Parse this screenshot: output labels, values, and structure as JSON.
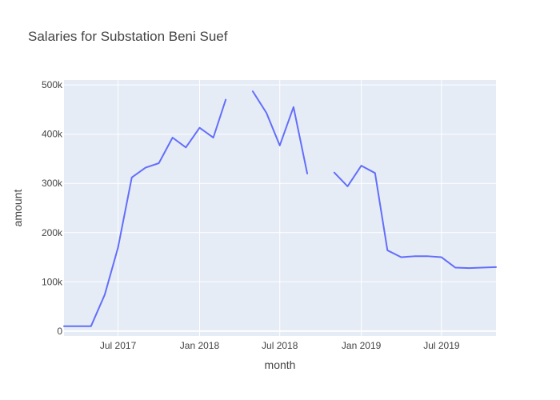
{
  "chart_data": {
    "type": "line",
    "title": "Salaries for Substation Beni Suef",
    "xlabel": "month",
    "ylabel": "amount",
    "x_range": [
      "2017-03-01",
      "2019-11-01"
    ],
    "ylim": [
      -10000,
      510000
    ],
    "grid": true,
    "legend": "none",
    "colors": {
      "line": "#636efa",
      "plot_bg": "#e5ecf6",
      "grid": "#ffffff",
      "paper_bg": "#ffffff",
      "text": "#444444"
    },
    "x_ticks": [
      {
        "date": "2017-07-01",
        "label": "Jul 2017"
      },
      {
        "date": "2018-01-01",
        "label": "Jan 2018"
      },
      {
        "date": "2018-07-01",
        "label": "Jul 2018"
      },
      {
        "date": "2019-01-01",
        "label": "Jan 2019"
      },
      {
        "date": "2019-07-01",
        "label": "Jul 2019"
      }
    ],
    "y_ticks": [
      {
        "value": 0,
        "label": "0"
      },
      {
        "value": 100000,
        "label": "100k"
      },
      {
        "value": 200000,
        "label": "200k"
      },
      {
        "value": 300000,
        "label": "300k"
      },
      {
        "value": 400000,
        "label": "400k"
      },
      {
        "value": 500000,
        "label": "500k"
      }
    ],
    "series": [
      {
        "x": [
          "2017-03-01",
          "2017-04-01",
          "2017-05-01",
          "2017-06-01",
          "2017-07-01",
          "2017-08-01",
          "2017-09-01",
          "2017-10-01",
          "2017-11-01",
          "2017-12-01",
          "2018-01-01",
          "2018-02-01",
          "2018-03-01",
          "2018-04-01",
          "2018-05-01",
          "2018-06-01",
          "2018-07-01",
          "2018-08-01",
          "2018-09-01",
          "2018-10-01",
          "2018-11-01",
          "2018-12-01",
          "2019-01-01",
          "2019-02-01",
          "2019-03-01",
          "2019-04-01",
          "2019-05-01",
          "2019-06-01",
          "2019-07-01",
          "2019-08-01",
          "2019-09-01",
          "2019-10-01",
          "2019-11-01"
        ],
        "y": [
          10000,
          10000,
          10000,
          74000,
          170000,
          312000,
          332000,
          341000,
          393000,
          373000,
          413000,
          393000,
          470000,
          null,
          487000,
          443000,
          377000,
          455000,
          320000,
          null,
          322000,
          294000,
          336000,
          321000,
          164000,
          150000,
          152000,
          152000,
          150000,
          129000,
          128000,
          129000,
          130000
        ]
      }
    ]
  }
}
